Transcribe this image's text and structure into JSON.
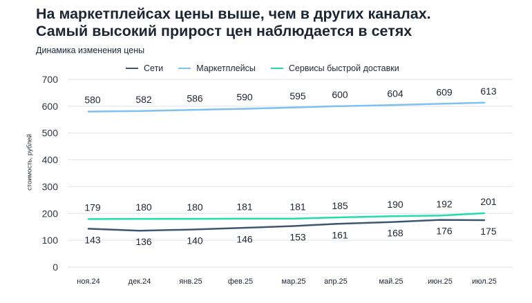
{
  "title_line1": "На маркетплейсах цены выше, чем в других каналах.",
  "title_line2": "Самый высокий прирост цен наблюдается в сетях",
  "chart_data": {
    "type": "line",
    "subtitle": "Динамика изменения цены",
    "ylabel": "стоимость, рублей",
    "xlabel": "",
    "categories": [
      "ноя.24",
      "дек.24",
      "янв.25",
      "фев.25",
      "мар.25",
      "апр.25",
      "май.25",
      "июн.25",
      "июл.25"
    ],
    "ylim": [
      0,
      700
    ],
    "yticks": [
      0,
      100,
      200,
      300,
      400,
      500,
      600,
      700
    ],
    "grid": true,
    "legend_position": "top",
    "series": [
      {
        "name": "Сети",
        "color": "#3a5675",
        "values": [
          143,
          136,
          140,
          146,
          153,
          161,
          168,
          176,
          175
        ],
        "label_position": "below"
      },
      {
        "name": "Маркетплейсы",
        "color": "#7dc0f2",
        "values": [
          580,
          582,
          586,
          590,
          595,
          600,
          604,
          609,
          613
        ],
        "label_position": "above"
      },
      {
        "name": "Сервисы быстрой доставки",
        "color": "#22dcb0",
        "values": [
          179,
          180,
          180,
          181,
          181,
          185,
          190,
          192,
          201
        ],
        "label_position": "above"
      }
    ]
  }
}
